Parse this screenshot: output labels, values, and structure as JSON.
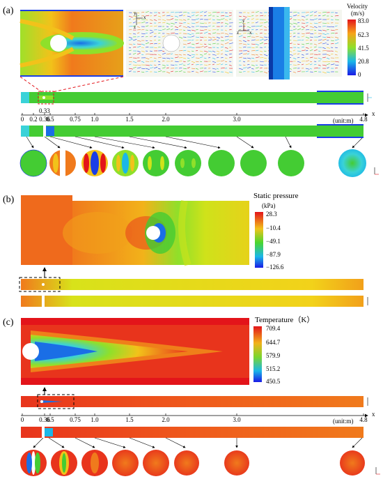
{
  "panels": [
    {
      "label": "(a)"
    },
    {
      "label": "(b)"
    },
    {
      "label": "(c)"
    }
  ],
  "velocity_legend": {
    "title": "Velocity",
    "unit": "(m/s)",
    "ticks": [
      "83.0",
      "62.3",
      "41.5",
      "20.8",
      "0"
    ]
  },
  "pressure_legend": {
    "title": "Static pressure",
    "unit": "(kPa)",
    "ticks": [
      "28.3",
      "−10.4",
      "−49.1",
      "−87.9",
      "−126.6"
    ]
  },
  "temperature_legend": {
    "title": "Temperature（K）",
    "ticks": [
      "709.4",
      "644.7",
      "579.9",
      "515.2",
      "450.5"
    ]
  },
  "axis_a": {
    "ticks": [
      "0",
      "0.2",
      "0.36",
      "0.5",
      "0.75",
      "1.0",
      "1.5",
      "2.0",
      "3.0",
      "4.8"
    ],
    "unit": "(unit:m)",
    "callout": "0.33",
    "var": "x"
  },
  "axis_c": {
    "ticks": [
      "0",
      "0.36",
      "0.5",
      "0.75",
      "1.0",
      "1.5",
      "2.0",
      "3.0",
      "4.8"
    ],
    "unit": "(unit:m)",
    "var": "x"
  },
  "inset_axes": {
    "y": "y",
    "x": "x",
    "z": "z"
  },
  "colors": {
    "red": "#e8341c",
    "green": "#44cc33",
    "blue": "#1a3ee6",
    "yellow": "#e6e21a",
    "orange": "#f07a1c"
  }
}
